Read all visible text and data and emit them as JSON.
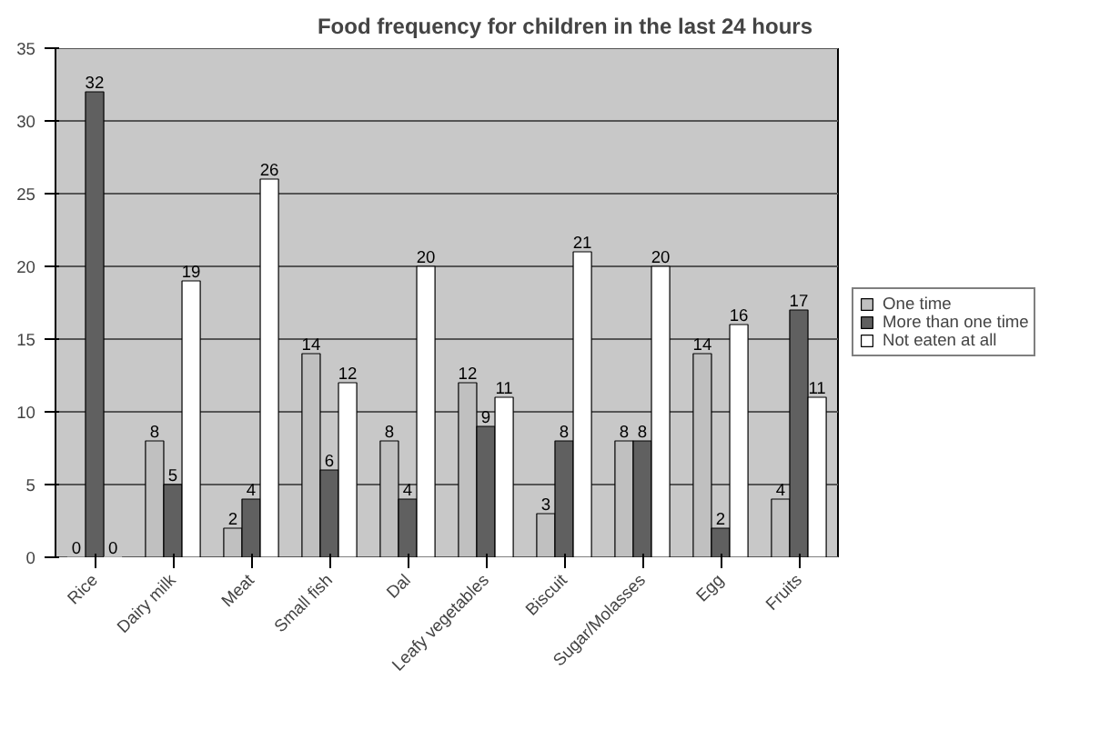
{
  "chart_data": {
    "type": "bar",
    "title": "Food frequency for children in the last 24 hours",
    "categories": [
      "Rice",
      "Dairy milk",
      "Meat",
      "Small fish",
      "Dal",
      "Leafy vegetables",
      "Biscuit",
      "Sugar/Molasses",
      "Egg",
      "Fruits"
    ],
    "series": [
      {
        "name": "One time",
        "color": "#c0c0c0",
        "values": [
          0,
          8,
          2,
          14,
          8,
          12,
          3,
          8,
          14,
          4
        ]
      },
      {
        "name": "More than one time",
        "color": "#606060",
        "values": [
          32,
          5,
          4,
          6,
          4,
          9,
          8,
          8,
          2,
          17
        ]
      },
      {
        "name": "Not eaten at all",
        "color": "#ffffff",
        "values": [
          0,
          19,
          26,
          12,
          20,
          11,
          21,
          20,
          16,
          11
        ]
      }
    ],
    "ylim": [
      0,
      35
    ],
    "yticks": [
      0,
      5,
      10,
      15,
      20,
      25,
      30,
      35
    ],
    "grid": "y",
    "legend": "right",
    "data_labels": true
  }
}
